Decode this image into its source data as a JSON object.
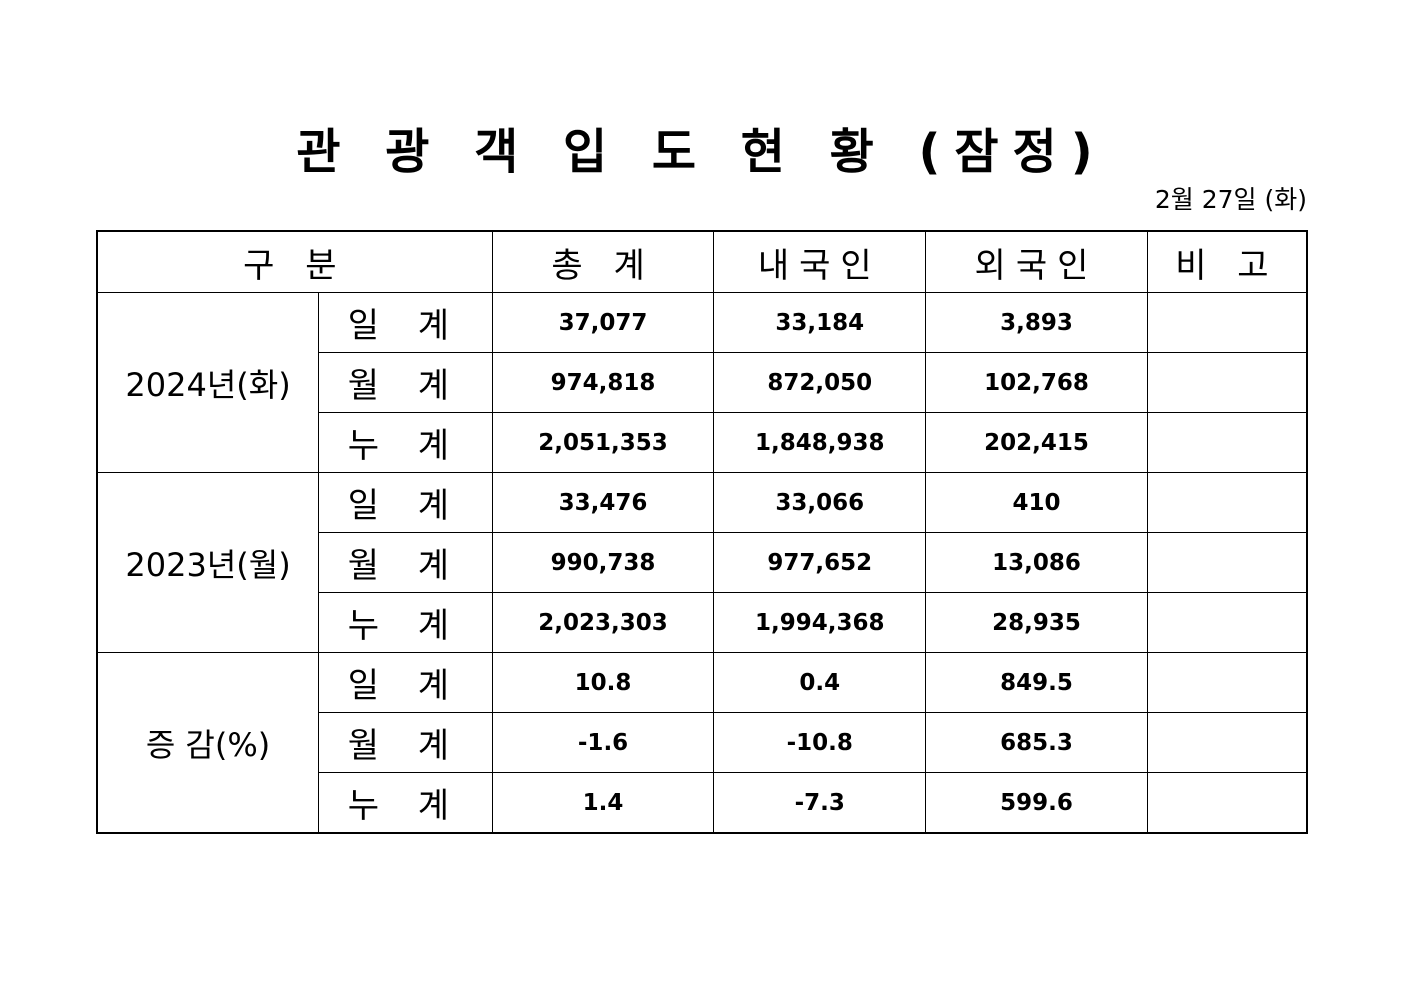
{
  "title": "관 광 객 입 도 현 황 (잠정)",
  "date": "2월 27일 (화)",
  "headers": [
    "구 분",
    "총 계",
    "내국인",
    "외국인",
    "비 고"
  ],
  "groups": [
    {
      "label": "2024년(화)",
      "rows": [
        {
          "sub": "일 계",
          "v": [
            "37,077",
            "33,184",
            "3,893",
            ""
          ]
        },
        {
          "sub": "월 계",
          "v": [
            "974,818",
            "872,050",
            "102,768",
            ""
          ]
        },
        {
          "sub": "누 계",
          "v": [
            "2,051,353",
            "1,848,938",
            "202,415",
            ""
          ]
        }
      ]
    },
    {
      "label": "2023년(월)",
      "rows": [
        {
          "sub": "일 계",
          "v": [
            "33,476",
            "33,066",
            "410",
            ""
          ]
        },
        {
          "sub": "월 계",
          "v": [
            "990,738",
            "977,652",
            "13,086",
            ""
          ]
        },
        {
          "sub": "누 계",
          "v": [
            "2,023,303",
            "1,994,368",
            "28,935",
            ""
          ]
        }
      ]
    },
    {
      "label": "증 감(%)",
      "rows": [
        {
          "sub": "일 계",
          "v": [
            "10.8",
            "0.4",
            "849.5",
            ""
          ]
        },
        {
          "sub": "월 계",
          "v": [
            "-1.6",
            "-10.8",
            "685.3",
            ""
          ]
        },
        {
          "sub": "누 계",
          "v": [
            "1.4",
            "-7.3",
            "599.6",
            ""
          ]
        }
      ]
    }
  ]
}
